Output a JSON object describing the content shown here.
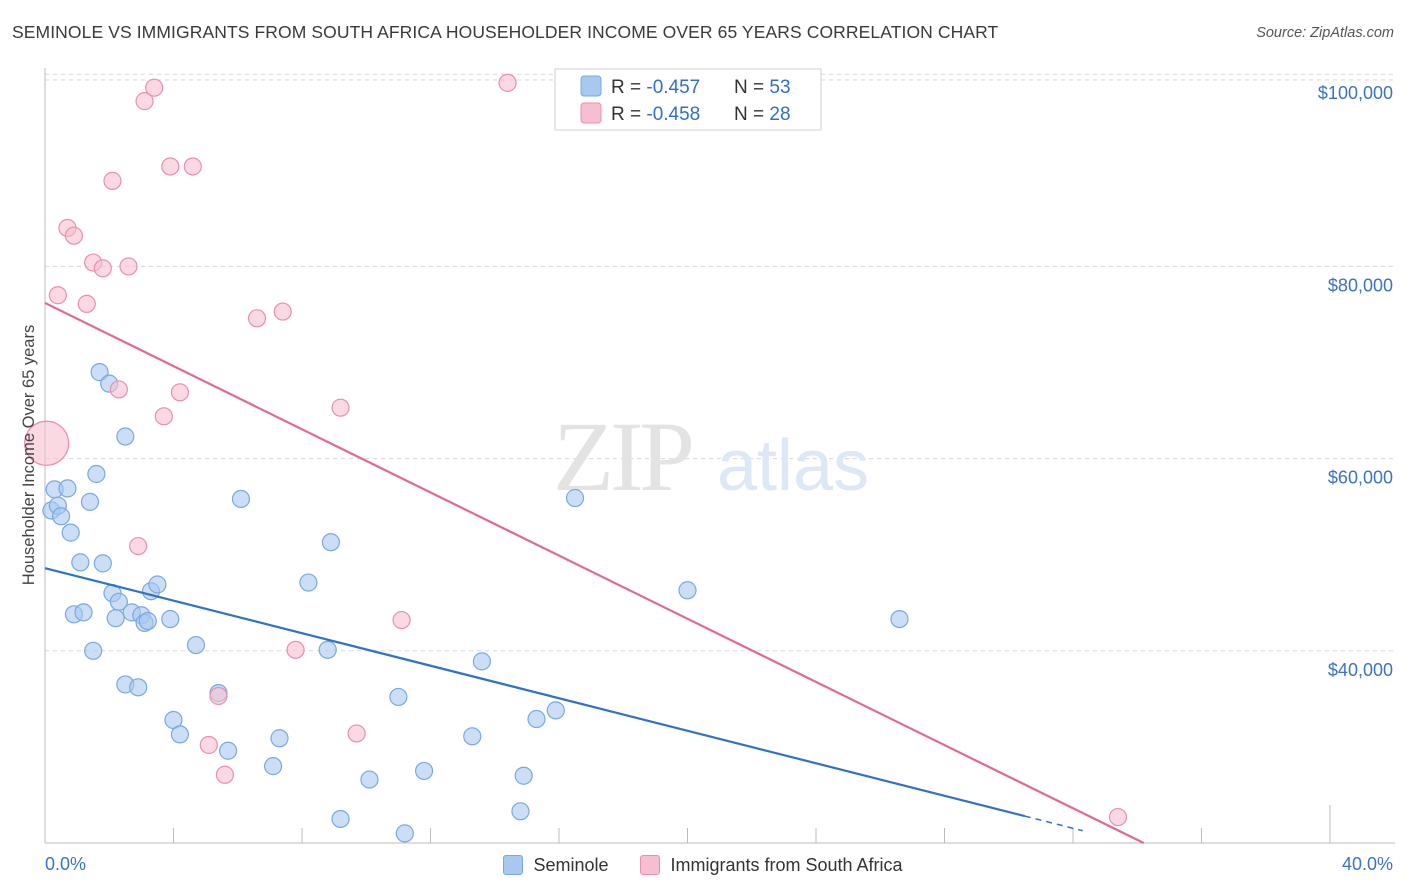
{
  "title": "SEMINOLE VS IMMIGRANTS FROM SOUTH AFRICA HOUSEHOLDER INCOME OVER 65 YEARS CORRELATION CHART",
  "source": "Source: ZipAtlas.com",
  "watermark": {
    "zip": "ZIP",
    "atlas": "atlas"
  },
  "colors": {
    "seminole_fill": "#a9c8f0",
    "seminole_stroke": "#7aa8e0",
    "seminole_line": "#2f72c9",
    "sa_fill": "#f6bfd0",
    "sa_stroke": "#e98fae",
    "sa_line": "#e06a95",
    "tick": "#3b73c5",
    "grid": "#d8d8d8"
  },
  "legend_top": {
    "rows": [
      {
        "r_label": "R = ",
        "r_value": "-0.457",
        "n_label": "N = ",
        "n_value": "53"
      },
      {
        "r_label": "R = ",
        "r_value": "-0.458",
        "n_label": "N = ",
        "n_value": "28"
      }
    ]
  },
  "chart_data": {
    "type": "scatter",
    "title": "SEMINOLE VS IMMIGRANTS FROM SOUTH AFRICA HOUSEHOLDER INCOME OVER 65 YEARS CORRELATION CHART",
    "xlabel": "",
    "ylabel": "Householder Income Over 65 years",
    "xlim": [
      0,
      40
    ],
    "ylim": [
      20000,
      102000
    ],
    "x_tick_labels": [
      "0.0%",
      "40.0%"
    ],
    "y_ticks": [
      40000,
      60000,
      80000,
      100000
    ],
    "y_tick_labels": [
      "$40,000",
      "$60,000",
      "$80,000",
      "$100,000"
    ],
    "grid": true,
    "legend_position": "top-center",
    "series": [
      {
        "name": "Seminole",
        "r": -0.457,
        "n": 53,
        "points": [
          [
            0.2,
            54600
          ],
          [
            0.3,
            56800
          ],
          [
            0.4,
            55100
          ],
          [
            0.5,
            54000
          ],
          [
            0.7,
            56900
          ],
          [
            0.8,
            52300
          ],
          [
            0.9,
            43800
          ],
          [
            1.1,
            49200
          ],
          [
            1.2,
            44000
          ],
          [
            1.4,
            55500
          ],
          [
            1.5,
            40000
          ],
          [
            1.6,
            58400
          ],
          [
            1.7,
            69000
          ],
          [
            1.8,
            49100
          ],
          [
            2.0,
            67800
          ],
          [
            2.1,
            46000
          ],
          [
            2.2,
            43400
          ],
          [
            2.3,
            45100
          ],
          [
            2.5,
            62300
          ],
          [
            2.5,
            36500
          ],
          [
            2.7,
            44000
          ],
          [
            2.9,
            36200
          ],
          [
            3.0,
            43700
          ],
          [
            3.1,
            42900
          ],
          [
            3.2,
            43100
          ],
          [
            3.3,
            46200
          ],
          [
            3.5,
            46900
          ],
          [
            3.9,
            43300
          ],
          [
            4.0,
            32800
          ],
          [
            4.2,
            31300
          ],
          [
            4.7,
            40600
          ],
          [
            5.4,
            35600
          ],
          [
            5.7,
            29600
          ],
          [
            6.1,
            55800
          ],
          [
            7.1,
            28000
          ],
          [
            7.3,
            30900
          ],
          [
            8.2,
            47100
          ],
          [
            8.8,
            40100
          ],
          [
            8.9,
            51300
          ],
          [
            9.2,
            22500
          ],
          [
            10.1,
            26600
          ],
          [
            11.0,
            35200
          ],
          [
            11.2,
            21000
          ],
          [
            11.8,
            27500
          ],
          [
            13.3,
            31100
          ],
          [
            13.6,
            38900
          ],
          [
            14.8,
            23300
          ],
          [
            14.9,
            27000
          ],
          [
            15.3,
            32900
          ],
          [
            15.9,
            33800
          ],
          [
            16.5,
            55900
          ],
          [
            20.0,
            46300
          ],
          [
            26.6,
            43300
          ]
        ]
      },
      {
        "name": "Immigrants from South Africa",
        "r": -0.458,
        "n": 28,
        "points": [
          [
            0.05,
            61600
          ],
          [
            0.4,
            77000
          ],
          [
            0.7,
            84000
          ],
          [
            0.9,
            83200
          ],
          [
            1.3,
            76100
          ],
          [
            1.5,
            80400
          ],
          [
            1.8,
            79800
          ],
          [
            2.1,
            88900
          ],
          [
            2.3,
            67200
          ],
          [
            2.6,
            80000
          ],
          [
            2.9,
            50900
          ],
          [
            3.1,
            97200
          ],
          [
            3.4,
            98600
          ],
          [
            3.7,
            64400
          ],
          [
            3.9,
            90400
          ],
          [
            4.2,
            66900
          ],
          [
            4.6,
            90400
          ],
          [
            5.1,
            30200
          ],
          [
            5.4,
            35300
          ],
          [
            5.6,
            27100
          ],
          [
            6.6,
            74600
          ],
          [
            7.4,
            75300
          ],
          [
            7.8,
            40100
          ],
          [
            9.2,
            65300
          ],
          [
            9.7,
            31400
          ],
          [
            11.1,
            43200
          ],
          [
            14.4,
            99100
          ],
          [
            33.4,
            22700
          ]
        ]
      }
    ],
    "trend_lines": [
      {
        "series": "Seminole",
        "x": [
          0,
          30.5
        ],
        "y": [
          48600,
          22800
        ],
        "dashed_extension_x": [
          30.5,
          32.3
        ]
      },
      {
        "series": "Immigrants from South Africa",
        "x": [
          0,
          34.2
        ],
        "y": [
          76200,
          20000
        ]
      }
    ]
  },
  "bottom_legend": {
    "items": [
      {
        "label": "Seminole"
      },
      {
        "label": "Immigrants from South Africa"
      }
    ]
  }
}
